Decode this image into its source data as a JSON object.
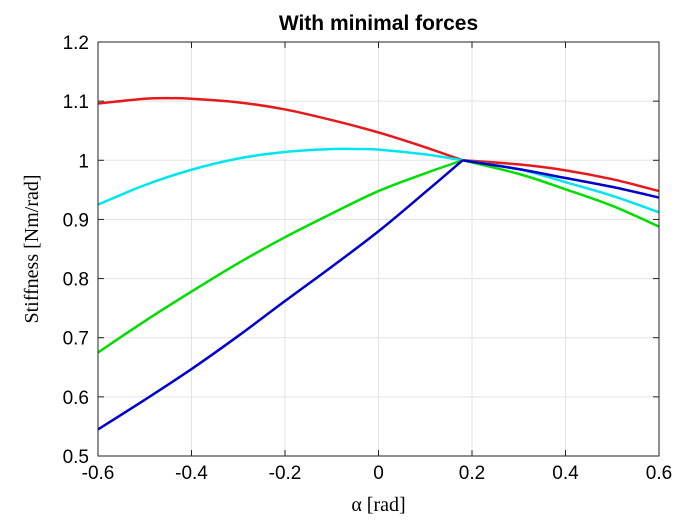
{
  "chart_data": {
    "type": "line",
    "title": "With minimal forces",
    "xlabel": "α [rad]",
    "ylabel": "Stiffness [Nm/rad]",
    "xlim": [
      -0.6,
      0.6
    ],
    "ylim": [
      0.5,
      1.2
    ],
    "xticks": [
      -0.6,
      -0.4,
      -0.2,
      0,
      0.2,
      0.4,
      0.6
    ],
    "xtick_labels": [
      "-0.6",
      "-0.4",
      "-0.2",
      "0",
      "0.2",
      "0.4",
      "0.6"
    ],
    "yticks": [
      0.5,
      0.6,
      0.7,
      0.8,
      0.9,
      1.0,
      1.1,
      1.2
    ],
    "ytick_labels": [
      "0.5",
      "0.6",
      "0.7",
      "0.8",
      "0.9",
      "1",
      "1.1",
      "1.2"
    ],
    "grid": true,
    "legend": "none",
    "colors": [
      "#e41a1c",
      "#00e5ee",
      "#00dd00",
      "#0000cc"
    ],
    "series": [
      {
        "color": "#e41a1c",
        "x": [
          -0.6,
          -0.5,
          -0.44,
          -0.4,
          -0.3,
          -0.2,
          -0.1,
          0,
          0.1,
          0.18,
          0.3,
          0.4,
          0.5,
          0.6
        ],
        "y": [
          1.096,
          1.104,
          1.105,
          1.104,
          1.098,
          1.086,
          1.068,
          1.047,
          1.022,
          1.0,
          0.993,
          0.983,
          0.968,
          0.948
        ]
      },
      {
        "color": "#00e5ee",
        "x": [
          -0.6,
          -0.5,
          -0.4,
          -0.3,
          -0.2,
          -0.1,
          -0.05,
          0,
          0.1,
          0.18,
          0.3,
          0.4,
          0.5,
          0.6
        ],
        "y": [
          0.925,
          0.958,
          0.984,
          1.003,
          1.014,
          1.019,
          1.019,
          1.018,
          1.01,
          1.0,
          0.985,
          0.963,
          0.94,
          0.912
        ]
      },
      {
        "color": "#00dd00",
        "x": [
          -0.6,
          -0.5,
          -0.4,
          -0.3,
          -0.2,
          -0.1,
          0,
          0.1,
          0.18,
          0.3,
          0.4,
          0.5,
          0.6
        ],
        "y": [
          0.675,
          0.728,
          0.778,
          0.826,
          0.87,
          0.91,
          0.948,
          0.978,
          1.0,
          0.977,
          0.951,
          0.923,
          0.888
        ]
      },
      {
        "color": "#0000cc",
        "x": [
          -0.6,
          -0.5,
          -0.4,
          -0.3,
          -0.2,
          -0.1,
          0,
          0.1,
          0.18,
          0.3,
          0.4,
          0.5,
          0.6
        ],
        "y": [
          0.545,
          0.595,
          0.647,
          0.703,
          0.762,
          0.82,
          0.88,
          0.946,
          1.0,
          0.985,
          0.97,
          0.955,
          0.937
        ]
      }
    ]
  }
}
